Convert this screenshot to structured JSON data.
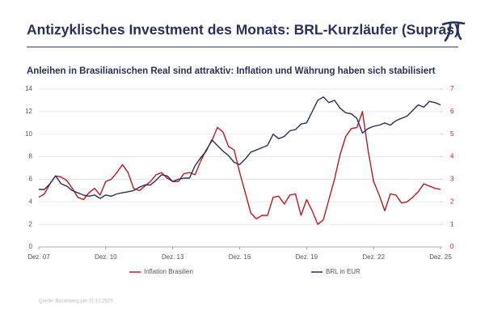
{
  "header": {
    "title": "Antizyklisches Investment des Monats: BRL-Kurzläufer (Supras)"
  },
  "chart_data": {
    "type": "line",
    "title": "Anleihen in Brasilianischen Real sind attraktiv: Inflation und Währung haben sich stabilisiert",
    "categories": [
      "Dez. 07",
      null,
      null,
      null,
      null,
      null,
      null,
      null,
      null,
      null,
      null,
      null,
      "Dez. 10",
      null,
      null,
      null,
      null,
      null,
      null,
      null,
      null,
      null,
      null,
      null,
      "Dez. 13",
      null,
      null,
      null,
      null,
      null,
      null,
      null,
      null,
      null,
      null,
      null,
      "Dez. 16",
      null,
      null,
      null,
      null,
      null,
      null,
      null,
      null,
      null,
      null,
      null,
      "Dez. 19",
      null,
      null,
      null,
      null,
      null,
      null,
      null,
      null,
      null,
      null,
      null,
      "Dez. 22",
      null,
      null,
      null,
      null,
      null,
      null,
      null,
      null,
      null,
      null,
      null,
      "Dez. 25"
    ],
    "series": [
      {
        "name": "Inflation Brasilien",
        "color": "#c0171f",
        "axis": "y2",
        "values": [
          2.2,
          2.35,
          2.8,
          3.15,
          3.1,
          2.95,
          2.6,
          2.2,
          2.1,
          2.4,
          2.6,
          2.3,
          2.9,
          3.0,
          3.3,
          3.65,
          3.3,
          2.6,
          2.5,
          2.7,
          2.9,
          3.2,
          3.3,
          3.05,
          2.9,
          2.9,
          3.25,
          3.3,
          3.2,
          3.8,
          4.3,
          4.7,
          5.3,
          5.1,
          4.45,
          4.3,
          3.3,
          2.4,
          1.5,
          1.25,
          1.4,
          1.4,
          2.2,
          2.25,
          1.9,
          2.3,
          2.35,
          1.4,
          2.1,
          1.6,
          1.0,
          1.2,
          2.1,
          3.0,
          4.1,
          4.9,
          5.25,
          5.3,
          6.0,
          4.3,
          2.9,
          2.3,
          1.6,
          2.35,
          2.3,
          1.95,
          2.0,
          2.2,
          2.45,
          2.8,
          2.7,
          2.6,
          2.55
        ]
      },
      {
        "name": "BRL in EUR",
        "color": "#2a2f5b",
        "values": [
          5.1,
          5.1,
          5.6,
          6.3,
          5.6,
          5.4,
          5.0,
          4.8,
          4.6,
          4.5,
          4.6,
          4.3,
          4.6,
          4.5,
          4.7,
          4.8,
          4.9,
          5.0,
          5.3,
          5.5,
          5.5,
          5.9,
          6.4,
          6.3,
          5.8,
          6.0,
          6.1,
          6.1,
          7.2,
          7.9,
          8.5,
          9.5,
          9.0,
          8.5,
          8.1,
          7.5,
          7.3,
          7.8,
          8.4,
          8.6,
          8.8,
          9.0,
          10.0,
          9.6,
          9.8,
          10.3,
          10.4,
          10.9,
          11.0,
          12.0,
          13.0,
          13.3,
          12.8,
          13.0,
          12.3,
          11.9,
          11.8,
          11.4,
          10.1,
          10.5,
          10.7,
          10.8,
          11.0,
          10.8,
          11.2,
          11.4,
          11.6,
          12.1,
          12.6,
          12.4,
          12.9,
          12.8,
          12.6
        ]
      }
    ],
    "ylim": [
      0,
      14
    ],
    "yticks": [
      0,
      2,
      4,
      6,
      8,
      10,
      12,
      14
    ],
    "y2lim": [
      0,
      7
    ],
    "y2ticks": [
      0,
      1,
      2,
      3,
      4,
      5,
      6,
      7
    ],
    "grid": true,
    "source": "Quelle: Bloomberg per 31.10.2025"
  }
}
